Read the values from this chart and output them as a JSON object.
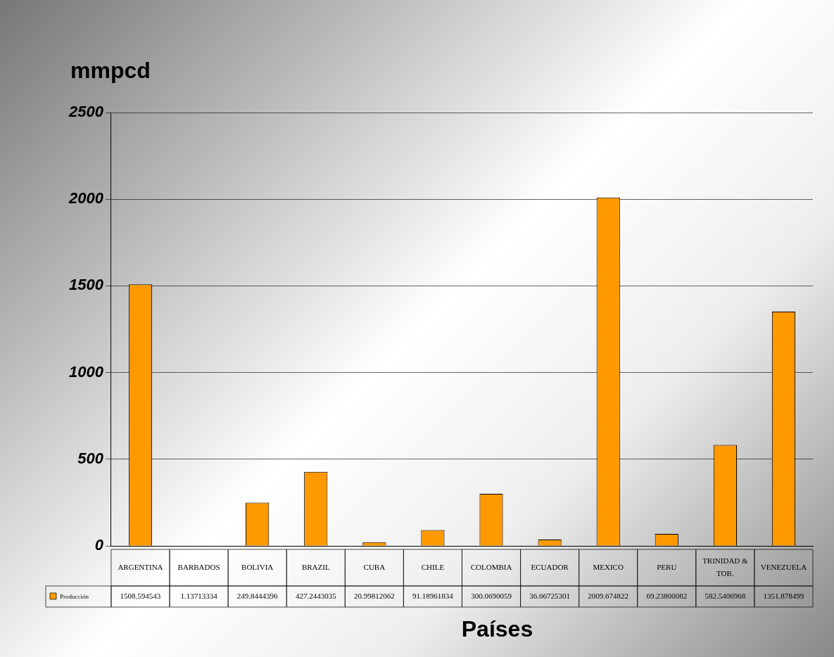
{
  "chart_data": {
    "type": "bar",
    "ylabel": "mmpcd",
    "xlabel": "Países",
    "categories": [
      "ARGENTINA",
      "BARBADOS",
      "BOLIVIA",
      "BRAZIL",
      "CUBA",
      "CHILE",
      "COLOMBIA",
      "ECUADOR",
      "MEXICO",
      "PERU",
      "TRINIDAD & TOB.",
      "VENEZUELA"
    ],
    "series": [
      {
        "name": "Producción",
        "color": "#ff9900",
        "values": [
          1508.594543,
          1.13713334,
          249.8444396,
          427.2443035,
          20.99812062,
          91.18961834,
          300.0690059,
          36.66725301,
          2009.674822,
          69.23800082,
          582.5406968,
          1351.878499
        ]
      }
    ],
    "ylim": [
      0,
      2500
    ],
    "yticks": [
      0,
      500,
      1000,
      1500,
      2000,
      2500
    ],
    "grid": "y",
    "legend": "bottom left",
    "data_labels": true
  }
}
